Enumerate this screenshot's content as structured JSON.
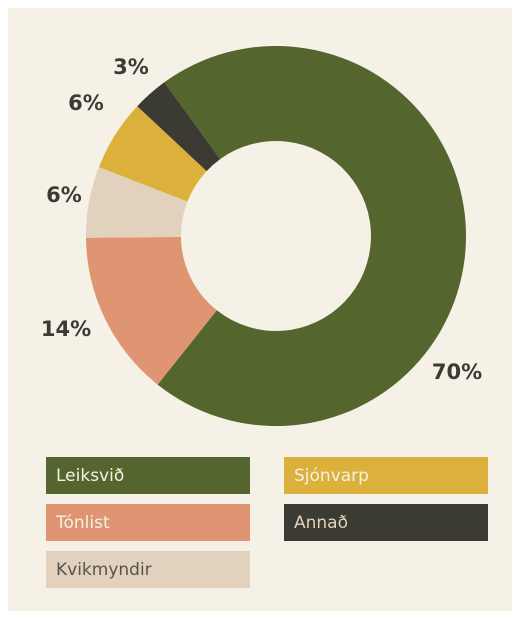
{
  "chart_data": {
    "type": "donut",
    "categories": [
      "Leiksvið",
      "Tónlist",
      "Kvikmyndir",
      "Sjónvarp",
      "Annað"
    ],
    "values": [
      70,
      14,
      6,
      6,
      3
    ],
    "value_labels": [
      "70%",
      "14%",
      "6%",
      "6%",
      "3%"
    ],
    "colors": [
      "#55652e",
      "#e09572",
      "#e1d1bd",
      "#dbb13b",
      "#3b3b33"
    ],
    "legend": "bottom"
  }
}
